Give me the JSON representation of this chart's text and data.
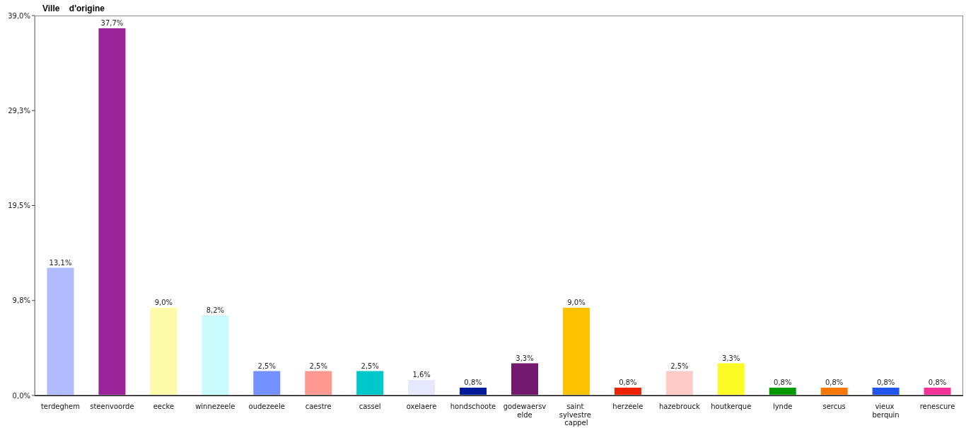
{
  "chart_data": {
    "type": "bar",
    "title": "Ville    d'origine",
    "categories": [
      "terdeghem",
      "steenvoorde",
      "eecke",
      "winnezeele",
      "oudezeele",
      "caestre",
      "cassel",
      "oxelaere",
      "hondschoote",
      "godewaersvelde",
      "saint sylvestre cappel",
      "herzeele",
      "hazebrouck",
      "houtkerque",
      "lynde",
      "sercus",
      "vieux berquin",
      "renescure"
    ],
    "values": [
      13.1,
      37.7,
      9.0,
      8.2,
      2.5,
      2.5,
      2.5,
      1.6,
      0.8,
      3.3,
      9.0,
      0.8,
      2.5,
      3.3,
      0.8,
      0.8,
      0.8,
      0.8
    ],
    "value_labels": [
      "13,1%",
      "37,7%",
      "9,0%",
      "8,2%",
      "2,5%",
      "2,5%",
      "2,5%",
      "1,6%",
      "0,8%",
      "3,3%",
      "9,0%",
      "0,8%",
      "2,5%",
      "3,3%",
      "0,8%",
      "0,8%",
      "0,8%",
      "0,8%"
    ],
    "colors": [
      "#b0bcff",
      "#9b2399",
      "#fdfbaa",
      "#c9fbfd",
      "#7591ff",
      "#ff9891",
      "#00c8ca",
      "#e6e8fd",
      "#001b99",
      "#731a6f",
      "#fec200",
      "#ee2200",
      "#ffcbc8",
      "#fdfb26",
      "#009900",
      "#fa7800",
      "#2255ee",
      "#f33399"
    ],
    "ylim": [
      0,
      39
    ],
    "yticks": [
      {
        "value": 0,
        "label": "0,0%"
      },
      {
        "value": 9.75,
        "label": "9,8%"
      },
      {
        "value": 19.5,
        "label": "19,5%"
      },
      {
        "value": 29.25,
        "label": "29,3%"
      },
      {
        "value": 39,
        "label": "39,0%"
      }
    ]
  }
}
